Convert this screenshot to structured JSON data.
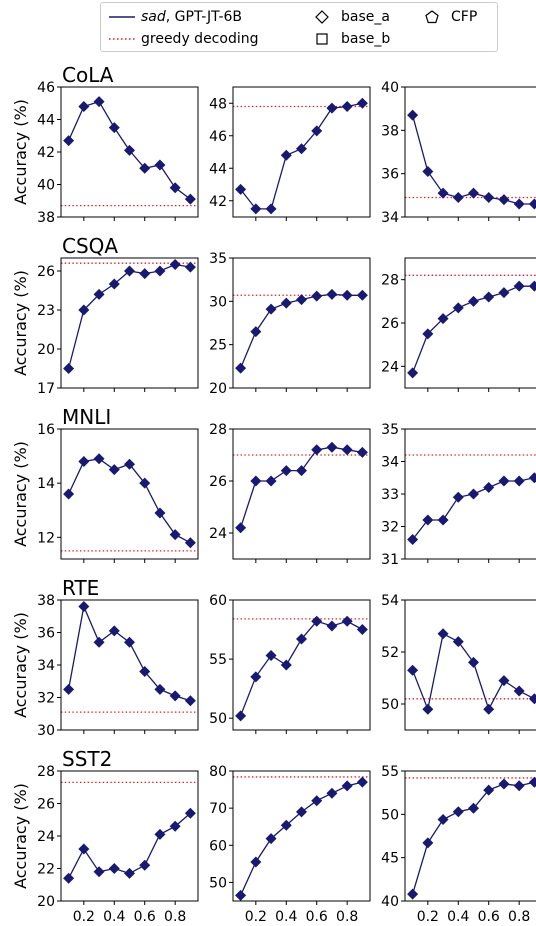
{
  "legend": {
    "items": [
      {
        "id": "sad",
        "label_italic": "sad",
        "label_rest": ", GPT-JT-6B",
        "marker": "line-diamond",
        "color": "#191970"
      },
      {
        "id": "greedy",
        "label": "greedy decoding",
        "marker": "dotted-line",
        "color": "#e41a1c"
      },
      {
        "id": "base_a",
        "label": "base_a",
        "marker": "hollow-diamond",
        "color": "#000000"
      },
      {
        "id": "base_b",
        "label": "base_b",
        "marker": "hollow-square",
        "color": "#000000"
      },
      {
        "id": "cfp",
        "label": "CFP",
        "marker": "hollow-pentagon",
        "color": "#000000"
      }
    ]
  },
  "colors": {
    "series": "#191970",
    "greedy": "#e41a1c"
  },
  "chart_data": {
    "type": "line",
    "ylabel": "Accuracy (%)",
    "x": [
      0.1,
      0.2,
      0.3,
      0.4,
      0.5,
      0.6,
      0.7,
      0.8,
      0.9
    ],
    "xticks": [
      0.2,
      0.4,
      0.6,
      0.8
    ],
    "xtick_labels": [
      "0.2",
      "0.4",
      "0.6",
      "0.8"
    ],
    "xlim": [
      0.05,
      0.95
    ],
    "rows": [
      {
        "dataset": "CoLA",
        "panels": [
          {
            "values": [
              42.7,
              44.8,
              45.1,
              43.5,
              42.1,
              41.0,
              41.2,
              39.8,
              39.1
            ],
            "greedy": 38.7,
            "ylim": [
              38,
              46
            ],
            "yticks": [
              38,
              40,
              42,
              44,
              46
            ],
            "ytick_labels": [
              "38",
              "40",
              "42",
              "44",
              "46"
            ]
          },
          {
            "values": [
              42.7,
              41.5,
              41.5,
              44.8,
              45.2,
              46.3,
              47.7,
              47.8,
              48.0
            ],
            "greedy": 47.8,
            "ylim": [
              41,
              49
            ],
            "yticks": [
              42,
              44,
              46,
              48
            ],
            "ytick_labels": [
              "42",
              "44",
              "46",
              "48"
            ]
          },
          {
            "values": [
              38.7,
              36.1,
              35.1,
              34.9,
              35.1,
              34.9,
              34.8,
              34.6,
              34.6
            ],
            "greedy": 34.9,
            "ylim": [
              34,
              40
            ],
            "yticks": [
              34,
              36,
              38,
              40
            ],
            "ytick_labels": [
              "34",
              "36",
              "38",
              "40"
            ]
          }
        ]
      },
      {
        "dataset": "CSQA",
        "panels": [
          {
            "values": [
              18.5,
              23.0,
              24.2,
              25.0,
              26.0,
              25.8,
              26.0,
              26.5,
              26.3
            ],
            "greedy": 26.6,
            "ylim": [
              17,
              27
            ],
            "yticks": [
              17,
              20,
              23,
              26
            ],
            "ytick_labels": [
              "17",
              "20",
              "23",
              "26"
            ]
          },
          {
            "values": [
              22.3,
              26.5,
              29.1,
              29.8,
              30.2,
              30.6,
              30.8,
              30.7,
              30.7
            ],
            "greedy": 30.7,
            "ylim": [
              20,
              35
            ],
            "yticks": [
              20,
              25,
              30,
              35
            ],
            "ytick_labels": [
              "20",
              "25",
              "30",
              "35"
            ]
          },
          {
            "values": [
              23.7,
              25.5,
              26.2,
              26.7,
              27.0,
              27.2,
              27.4,
              27.7,
              27.7
            ],
            "greedy": 28.2,
            "ylim": [
              23,
              29
            ],
            "yticks": [
              24,
              26,
              28
            ],
            "ytick_labels": [
              "24",
              "26",
              "28"
            ]
          }
        ]
      },
      {
        "dataset": "MNLI",
        "panels": [
          {
            "values": [
              13.6,
              14.8,
              14.9,
              14.5,
              14.7,
              14.0,
              12.9,
              12.1,
              11.8
            ],
            "greedy": 11.5,
            "ylim": [
              11.2,
              16
            ],
            "yticks": [
              12,
              14,
              16
            ],
            "ytick_labels": [
              "12",
              "14",
              "16"
            ]
          },
          {
            "values": [
              24.2,
              26.0,
              26.0,
              26.4,
              26.4,
              27.2,
              27.3,
              27.2,
              27.1
            ],
            "greedy": 27.0,
            "ylim": [
              23,
              28
            ],
            "yticks": [
              24,
              26,
              28
            ],
            "ytick_labels": [
              "24",
              "26",
              "28"
            ]
          },
          {
            "values": [
              31.6,
              32.2,
              32.2,
              32.9,
              33.0,
              33.2,
              33.4,
              33.4,
              33.5
            ],
            "greedy": 34.2,
            "ylim": [
              31,
              35
            ],
            "yticks": [
              31,
              32,
              33,
              34,
              35
            ],
            "ytick_labels": [
              "31",
              "32",
              "33",
              "34",
              "35"
            ]
          }
        ]
      },
      {
        "dataset": "RTE",
        "panels": [
          {
            "values": [
              32.5,
              37.6,
              35.4,
              36.1,
              35.4,
              33.6,
              32.5,
              32.1,
              31.8
            ],
            "greedy": 31.1,
            "ylim": [
              30,
              38
            ],
            "yticks": [
              30,
              32,
              34,
              36,
              38
            ],
            "ytick_labels": [
              "30",
              "32",
              "34",
              "36",
              "38"
            ]
          },
          {
            "values": [
              50.2,
              53.5,
              55.3,
              54.5,
              56.7,
              58.2,
              57.8,
              58.2,
              57.5
            ],
            "greedy": 58.4,
            "ylim": [
              49,
              60
            ],
            "yticks": [
              50,
              55,
              60
            ],
            "ytick_labels": [
              "50",
              "55",
              "60"
            ]
          },
          {
            "values": [
              51.3,
              49.8,
              52.7,
              52.4,
              51.6,
              49.8,
              50.9,
              50.5,
              50.2
            ],
            "greedy": 50.2,
            "ylim": [
              49,
              54
            ],
            "yticks": [
              50,
              52,
              54
            ],
            "ytick_labels": [
              "50",
              "52",
              "54"
            ]
          }
        ]
      },
      {
        "dataset": "SST2",
        "panels": [
          {
            "values": [
              21.4,
              23.2,
              21.8,
              22.0,
              21.7,
              22.2,
              24.1,
              24.6,
              25.4
            ],
            "greedy": 27.3,
            "ylim": [
              20,
              28
            ],
            "yticks": [
              20,
              22,
              24,
              26,
              28
            ],
            "ytick_labels": [
              "20",
              "22",
              "24",
              "26",
              "28"
            ]
          },
          {
            "values": [
              46.5,
              55.5,
              61.8,
              65.4,
              69.0,
              72.0,
              74.0,
              76.0,
              77.0
            ],
            "greedy": 78.4,
            "ylim": [
              45,
              80
            ],
            "yticks": [
              50,
              60,
              70,
              80
            ],
            "ytick_labels": [
              "50",
              "60",
              "70",
              "80"
            ]
          },
          {
            "values": [
              40.8,
              46.7,
              49.4,
              50.3,
              50.7,
              52.8,
              53.5,
              53.3,
              53.7
            ],
            "greedy": 54.2,
            "ylim": [
              40,
              55
            ],
            "yticks": [
              40,
              45,
              50,
              55
            ],
            "ytick_labels": [
              "40",
              "45",
              "50",
              "55"
            ]
          }
        ]
      }
    ]
  }
}
